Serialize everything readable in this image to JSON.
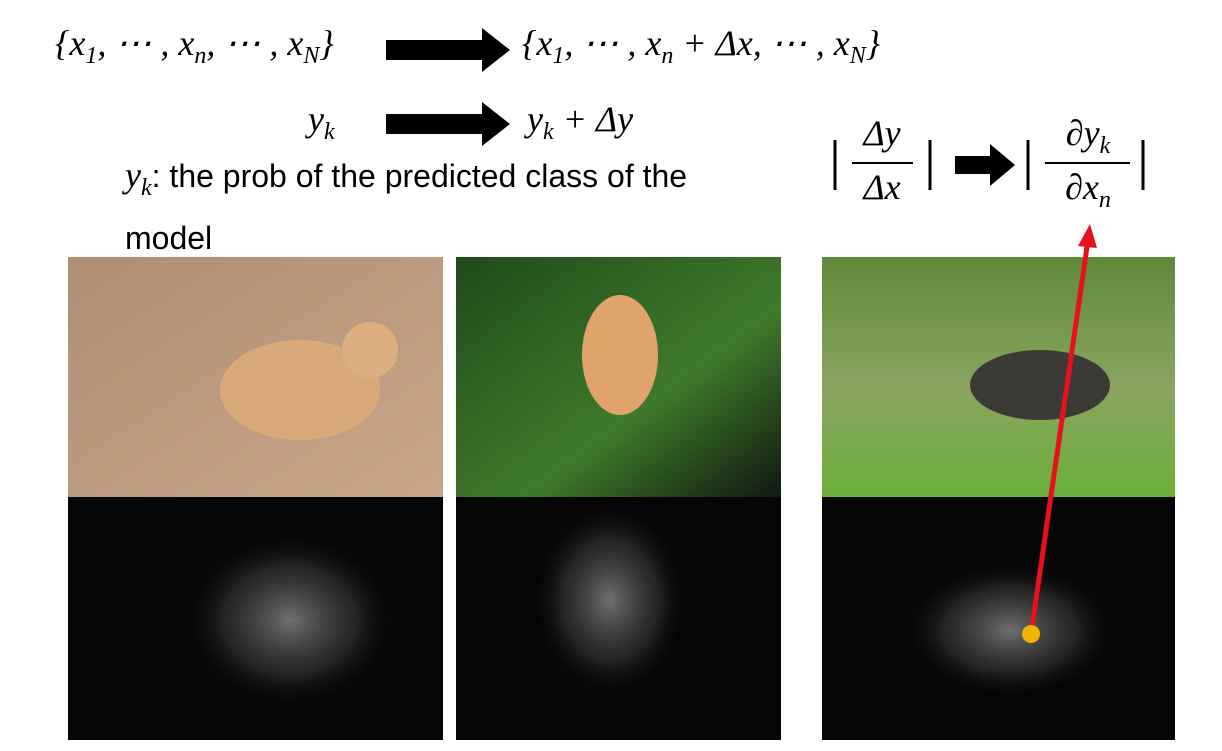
{
  "formula_rows": [
    {
      "left": [
        {
          "text": "{x"
        },
        {
          "sub": "1"
        },
        {
          "text": ", ⋯ , x"
        },
        {
          "sub": "n"
        },
        {
          "text": ", ⋯ , x"
        },
        {
          "sub": "N"
        },
        {
          "text": "}"
        }
      ],
      "right": [
        {
          "text": "{x"
        },
        {
          "sub": "1"
        },
        {
          "text": ", ⋯ , x"
        },
        {
          "sub": "n"
        },
        {
          "text": " + Δx, ⋯ , x"
        },
        {
          "sub": "N"
        },
        {
          "text": "}"
        }
      ]
    },
    {
      "left": [
        {
          "text": "y"
        },
        {
          "sub": "k"
        }
      ],
      "right": [
        {
          "text": "y"
        },
        {
          "sub": "k"
        },
        {
          "text": " + Δy"
        }
      ]
    }
  ],
  "definition": {
    "symbol": [
      {
        "text": "y"
      },
      {
        "sub": "k"
      }
    ],
    "text": ": the prob of the predicted class of the model"
  },
  "gradient": {
    "finite": {
      "numerator": [
        {
          "text": "Δy"
        }
      ],
      "denominator": [
        {
          "text": "Δx"
        }
      ]
    },
    "partial": {
      "numerator": [
        {
          "text": "∂y"
        },
        {
          "sub": "k"
        }
      ],
      "denominator": [
        {
          "text": "∂x"
        },
        {
          "sub": "n"
        }
      ]
    }
  }
}
